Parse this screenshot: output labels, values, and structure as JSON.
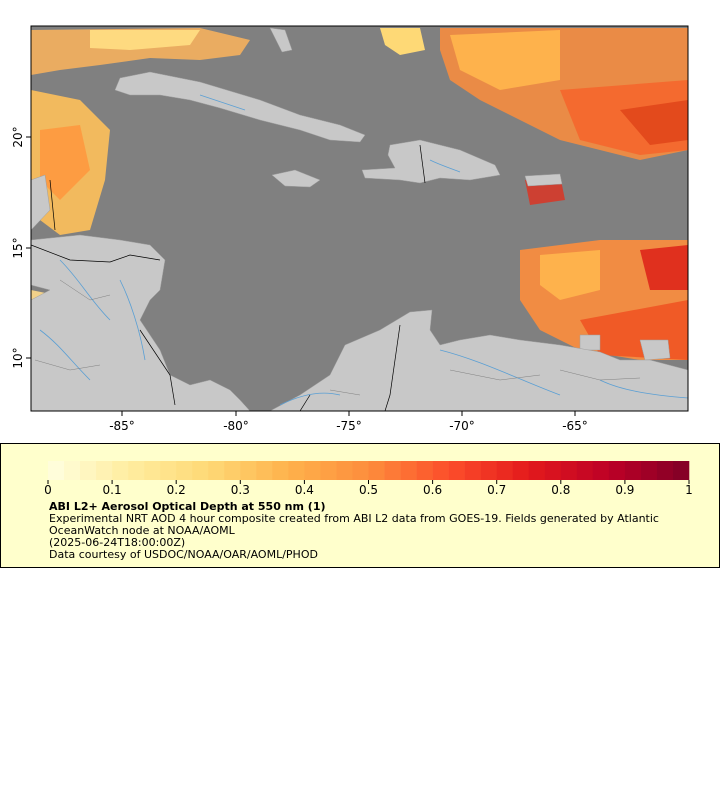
{
  "map": {
    "x_ticks": [
      "-85°",
      "-80°",
      "-75°",
      "-70°",
      "-65°"
    ],
    "y_ticks": [
      "20°",
      "15°",
      "10°"
    ],
    "colors": {
      "ocean_nodata": "#808080",
      "land": "#c8c8c8",
      "river": "#5a9fd4",
      "border": "#000000"
    }
  },
  "legend": {
    "scale_ticks": [
      "0",
      "0.1",
      "0.2",
      "0.3",
      "0.4",
      "0.5",
      "0.6",
      "0.7",
      "0.8",
      "0.9",
      "1"
    ],
    "colormap_stops": [
      "#ffffe0",
      "#ffeda0",
      "#fed976",
      "#feb24c",
      "#fd8d3c",
      "#fc4e2a",
      "#e31a1c",
      "#bd0026",
      "#800026"
    ],
    "title": "ABI L2+ Aerosol Optical Depth at 550 nm (1)",
    "description": "Experimental NRT AOD 4 hour composite created from ABI L2 data from GOES-19. Fields generated by Atlantic OceanWatch node at NOAA/AOML",
    "time": "(2025-06-24T18:00:00Z)",
    "credit": "Data courtesy of USDOC/NOAA/OAR/AOML/PHOD"
  }
}
